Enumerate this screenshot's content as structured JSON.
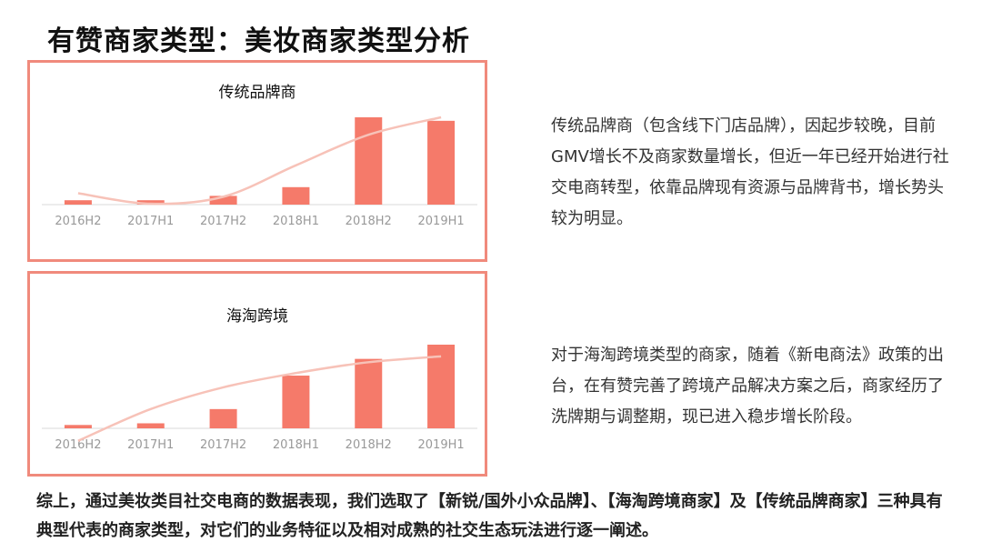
{
  "title": "有赞商家类型：美妆商家类型分析",
  "panels": [
    {
      "heading": "传统品牌商",
      "description": "传统品牌商（包含线下门店品牌），因起步较晚，目前GMV增长不及商家数量增长，但近一年已经开始进行社交电商转型，依靠品牌现有资源与品牌背书，增长势头较为明显。"
    },
    {
      "heading": "海淘跨境",
      "description": "对于海淘跨境类型的商家，随着《新电商法》政策的出台，在有赞完善了跨境产品解决方案之后，商家经历了洗牌期与调整期，现已进入稳步增长阶段。"
    }
  ],
  "summary": "综上，通过美妆类目社交电商的数据表现，我们选取了【新锐/国外小众品牌】、【海淘跨境商家】及【传统品牌商家】三种具有典型代表的商家类型，对它们的业务特征以及相对成熟的社交生态玩法进行逐一阐述。",
  "colors": {
    "bar": "#f57a6a",
    "trend": "#f7c2b8",
    "border": "#f08a7c"
  },
  "chart_data": [
    {
      "type": "bar",
      "title": "传统品牌商",
      "categories": [
        "2016H2",
        "2017H1",
        "2017H2",
        "2018H1",
        "2018H2",
        "2019H1"
      ],
      "values": [
        5,
        5,
        10,
        20,
        100,
        96
      ],
      "trend": [
        13,
        1,
        9,
        45,
        80,
        100
      ],
      "ylim": [
        0,
        100
      ],
      "legend": "none",
      "grid": false
    },
    {
      "type": "bar",
      "title": "海淘跨境",
      "categories": [
        "2016H2",
        "2017H1",
        "2017H2",
        "2018H1",
        "2018H2",
        "2019H1"
      ],
      "values": [
        4,
        6,
        23,
        63,
        83,
        100
      ],
      "trend": [
        -15,
        23,
        49,
        66,
        79,
        86
      ],
      "ylim": [
        0,
        100
      ],
      "legend": "none",
      "grid": false
    }
  ]
}
